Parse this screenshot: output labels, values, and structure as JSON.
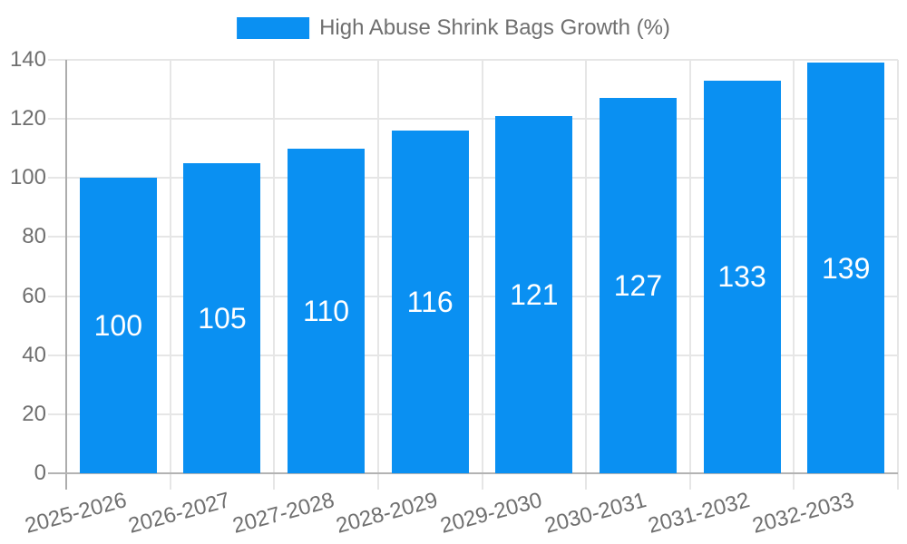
{
  "legend": {
    "label": "High Abuse Shrink Bags Growth (%)"
  },
  "chart_data": {
    "type": "bar",
    "title": "High Abuse Shrink Bags Growth (%)",
    "series_name": "High Abuse Shrink Bags Growth (%)",
    "categories": [
      "2025-2026",
      "2026-2027",
      "2027-2028",
      "2028-2029",
      "2029-2030",
      "2030-2031",
      "2031-2032",
      "2032-2033"
    ],
    "values": [
      100,
      105,
      110,
      116,
      121,
      127,
      133,
      139
    ],
    "xlabel": "",
    "ylabel": "",
    "ylim": [
      0,
      140
    ],
    "yticks": [
      0,
      20,
      40,
      60,
      80,
      100,
      120,
      140
    ],
    "grid": true,
    "legend_position": "top",
    "x_label_rotation_deg": -15,
    "bar_color": "#0a90f2",
    "value_label_color": "#ffffff",
    "axis_text_color": "#6f6f6f",
    "grid_color": "#e6e6e6",
    "axis_line_color": "#b3b3b3"
  }
}
